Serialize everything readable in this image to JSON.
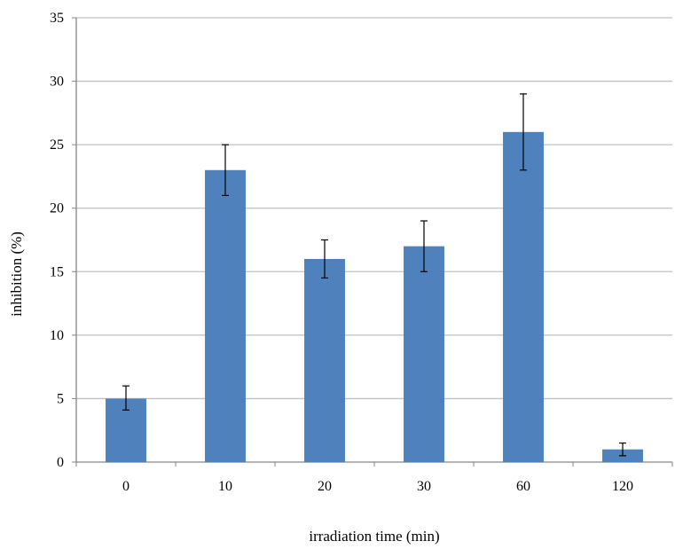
{
  "chart_data": {
    "type": "bar",
    "title": "",
    "xlabel": "irradiation time (min)",
    "ylabel": "inhibition (%)",
    "categories": [
      "0",
      "10",
      "20",
      "30",
      "60",
      "120"
    ],
    "values": [
      5,
      23,
      16,
      17,
      26,
      1
    ],
    "error_bars": [
      [
        4.1,
        6.0
      ],
      [
        21.0,
        25.0
      ],
      [
        14.5,
        17.5
      ],
      [
        15.0,
        19.0
      ],
      [
        23.0,
        29.0
      ],
      [
        0.5,
        1.5
      ]
    ],
    "ylim": [
      0,
      35
    ],
    "yticks": [
      "0",
      "5",
      "10",
      "15",
      "20",
      "25",
      "30",
      "35"
    ],
    "grid": true,
    "legend": "none",
    "colors": {
      "bar": "#4f81bd",
      "grid": "#c0c0c0",
      "axis": "#868686",
      "error_bar": "#000000"
    }
  }
}
